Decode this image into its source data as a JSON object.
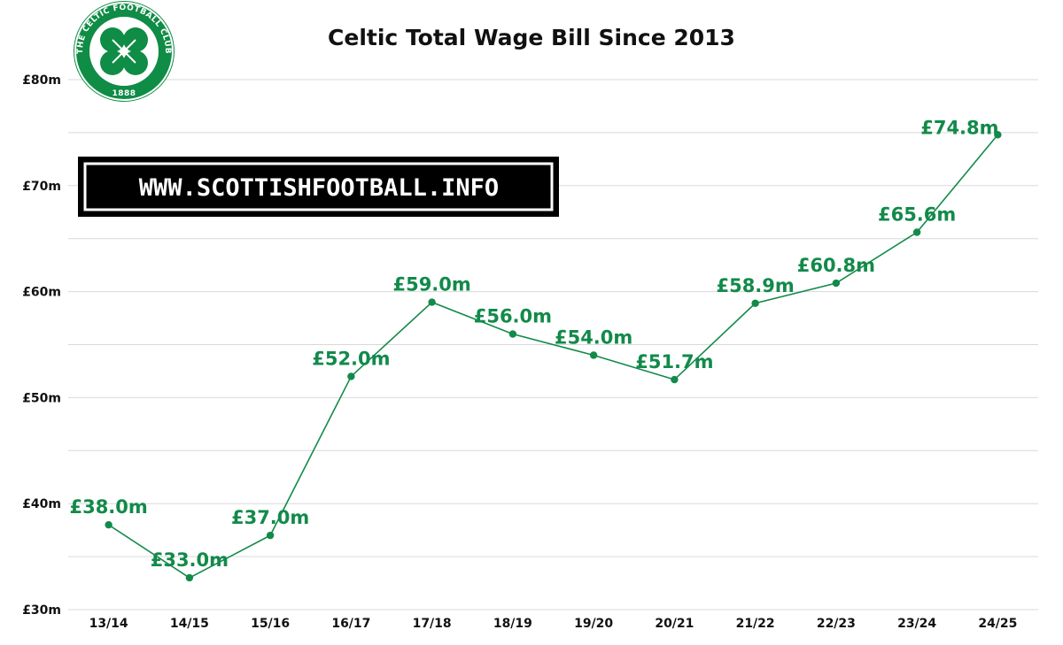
{
  "chart_data": {
    "type": "line",
    "title": "Celtic Total Wage Bill Since 2013",
    "xlabel": "",
    "ylabel": "",
    "categories": [
      "13/14",
      "14/15",
      "15/16",
      "16/17",
      "17/18",
      "18/19",
      "19/20",
      "20/21",
      "21/22",
      "22/23",
      "23/24",
      "24/25"
    ],
    "series": [
      {
        "values": [
          38.0,
          33.0,
          37.0,
          52.0,
          59.0,
          56.0,
          54.0,
          51.7,
          58.9,
          60.8,
          65.6,
          74.8
        ]
      }
    ],
    "data_labels": [
      "£38.0m",
      "£33.0m",
      "£37.0m",
      "£52.0m",
      "£59.0m",
      "£56.0m",
      "£54.0m",
      "£51.7m",
      "£58.9m",
      "£60.8m",
      "£65.6m",
      "£74.8m"
    ],
    "ylim": [
      30,
      80
    ],
    "y_ticks": [
      30,
      40,
      50,
      60,
      70,
      80
    ],
    "y_tick_labels": [
      "£30m",
      "£40m",
      "£50m",
      "£60m",
      "£70m",
      "£80m"
    ],
    "grid": true,
    "grid_minor_step": 5,
    "legend": "none",
    "line_color": "#128a4a"
  },
  "logo": {
    "ring_text": "THE CELTIC FOOTBALL CLUB",
    "year": "1888",
    "color": "#0f8c45"
  },
  "watermark": {
    "text": "WWW.SCOTTISHFOOTBALL.INFO",
    "background": "#000000",
    "text_color": "#ffffff"
  }
}
